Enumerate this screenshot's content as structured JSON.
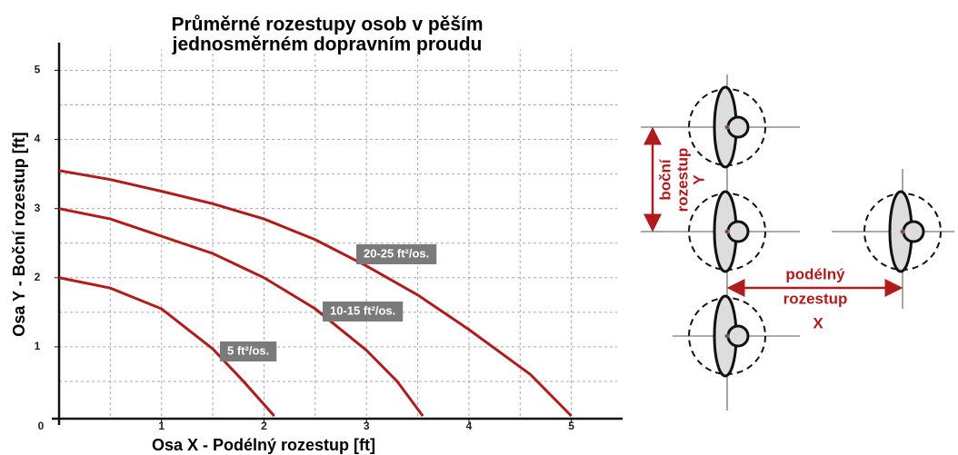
{
  "chart_data": {
    "type": "line",
    "title": [
      "Průměrné rozestupy osob v pěším",
      "jednosměrném dopravním proudu"
    ],
    "x_label": "Osa X -  Podélný rozestup [ft]",
    "y_label": "Osa Y -  Boční rozestup [ft]",
    "xlim": [
      0,
      5.5
    ],
    "ylim": [
      0,
      5.4
    ],
    "xticks": [
      0,
      1,
      2,
      3,
      4,
      5
    ],
    "yticks": [
      1,
      2,
      3,
      4,
      5
    ],
    "xgrid": [
      0.5,
      1,
      1.5,
      2,
      2.5,
      3,
      3.5,
      4,
      4.5,
      5
    ],
    "ygrid": [
      0.5,
      1,
      1.5,
      2,
      2.5,
      3,
      3.5,
      4,
      4.5,
      5
    ],
    "grid": true,
    "series": [
      {
        "name": "5 ft²/os.",
        "color": "#b01c1c",
        "x": [
          0,
          0.5,
          1,
          1.5,
          1.8,
          2.1
        ],
        "values": [
          2,
          1.85,
          1.55,
          0.97,
          0.5,
          0
        ]
      },
      {
        "name": "10-15 ft²/os.",
        "color": "#b01c1c",
        "x": [
          0,
          0.5,
          1,
          1.5,
          2,
          2.5,
          3,
          3.3,
          3.55
        ],
        "values": [
          3,
          2.85,
          2.6,
          2.35,
          2.0,
          1.55,
          0.95,
          0.5,
          0
        ]
      },
      {
        "name": "20-25 ft²/os.",
        "color": "#b01c1c",
        "x": [
          0,
          0.5,
          1,
          1.5,
          2,
          2.5,
          3,
          3.5,
          4,
          4.6,
          5
        ],
        "values": [
          3.55,
          3.42,
          3.25,
          3.07,
          2.85,
          2.55,
          2.17,
          1.75,
          1.25,
          0.6,
          0
        ]
      }
    ]
  },
  "diagram": {
    "lateral_label": [
      "boční",
      "rozestup"
    ],
    "lateral_axis": "Y",
    "longitudinal_label": [
      "podélný",
      "rozestup"
    ],
    "longitudinal_axis": "X"
  }
}
